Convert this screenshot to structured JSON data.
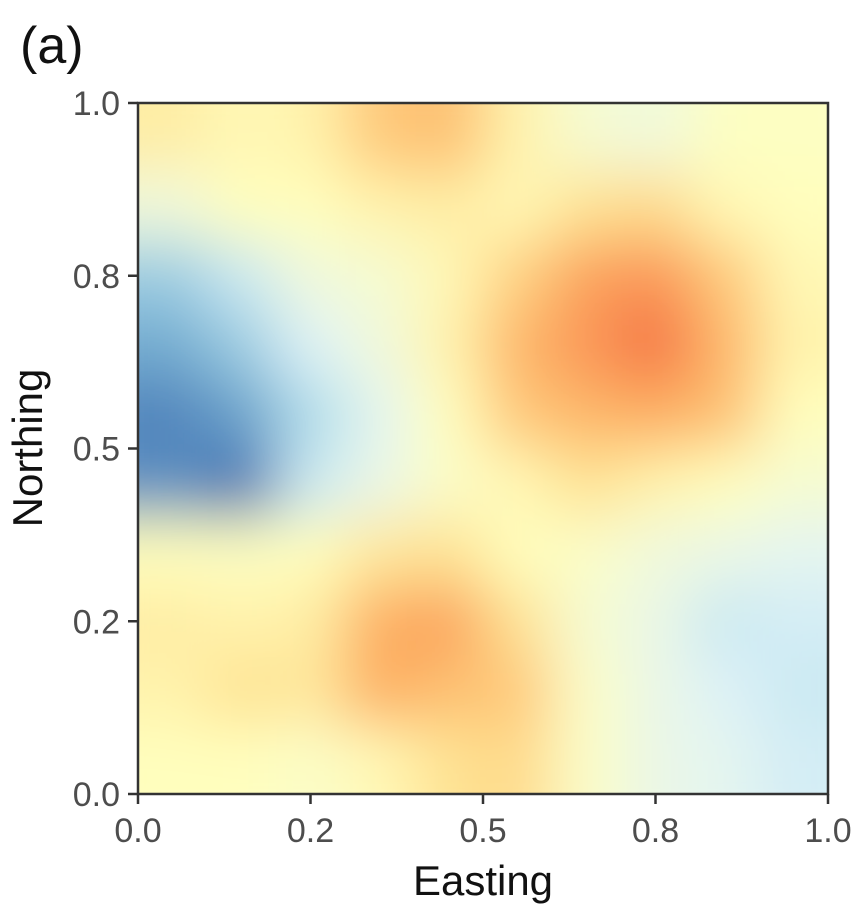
{
  "chart_data": {
    "type": "heatmap",
    "panel_label": "(a)",
    "title": "",
    "xlabel": "Easting",
    "ylabel": "Northing",
    "xlim": [
      0,
      1
    ],
    "ylim": [
      0,
      1
    ],
    "x_ticks": [
      {
        "value": 0.0,
        "label": "0.0"
      },
      {
        "value": 0.25,
        "label": "0.2"
      },
      {
        "value": 0.5,
        "label": "0.5"
      },
      {
        "value": 0.75,
        "label": "0.8"
      },
      {
        "value": 1.0,
        "label": "1.0"
      }
    ],
    "y_ticks": [
      {
        "value": 0.0,
        "label": "0.0"
      },
      {
        "value": 0.25,
        "label": "0.2"
      },
      {
        "value": 0.5,
        "label": "0.5"
      },
      {
        "value": 0.75,
        "label": "0.8"
      },
      {
        "value": 1.0,
        "label": "1.0"
      }
    ],
    "grid": false,
    "legend": "none",
    "colormap": [
      "#313695",
      "#4575b4",
      "#74add1",
      "#abd9e9",
      "#e0f3f8",
      "#ffffbf",
      "#fee090",
      "#fdae61",
      "#f46d43",
      "#d73027"
    ],
    "x_centers": [
      0.05,
      0.15,
      0.25,
      0.35,
      0.45,
      0.55,
      0.65,
      0.75,
      0.85,
      0.95
    ],
    "y_centers": [
      0.95,
      0.85,
      0.75,
      0.65,
      0.55,
      0.45,
      0.35,
      0.25,
      0.15,
      0.05
    ],
    "values": [
      [
        0.62,
        0.58,
        0.6,
        0.72,
        0.74,
        0.6,
        0.52,
        0.5,
        0.55,
        0.55
      ],
      [
        0.5,
        0.56,
        0.56,
        0.6,
        0.62,
        0.58,
        0.66,
        0.68,
        0.58,
        0.56
      ],
      [
        0.3,
        0.4,
        0.5,
        0.52,
        0.58,
        0.7,
        0.8,
        0.82,
        0.72,
        0.58
      ],
      [
        0.22,
        0.3,
        0.44,
        0.5,
        0.6,
        0.76,
        0.82,
        0.88,
        0.76,
        0.6
      ],
      [
        0.14,
        0.2,
        0.34,
        0.46,
        0.56,
        0.72,
        0.76,
        0.78,
        0.74,
        0.56
      ],
      [
        0.16,
        0.1,
        0.4,
        0.48,
        0.54,
        0.58,
        0.66,
        0.6,
        0.56,
        0.52
      ],
      [
        0.56,
        0.55,
        0.56,
        0.64,
        0.66,
        0.56,
        0.54,
        0.5,
        0.48,
        0.46
      ],
      [
        0.62,
        0.6,
        0.62,
        0.78,
        0.8,
        0.66,
        0.52,
        0.48,
        0.4,
        0.42
      ],
      [
        0.6,
        0.66,
        0.64,
        0.78,
        0.74,
        0.72,
        0.54,
        0.48,
        0.44,
        0.4
      ],
      [
        0.56,
        0.56,
        0.54,
        0.58,
        0.66,
        0.68,
        0.54,
        0.48,
        0.46,
        0.42
      ]
    ]
  }
}
